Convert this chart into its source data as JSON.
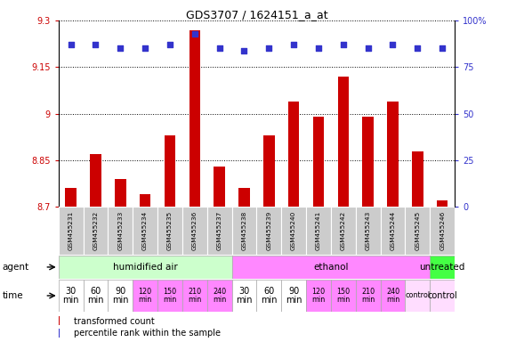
{
  "title": "GDS3707 / 1624151_a_at",
  "samples": [
    "GSM455231",
    "GSM455232",
    "GSM455233",
    "GSM455234",
    "GSM455235",
    "GSM455236",
    "GSM455237",
    "GSM455238",
    "GSM455239",
    "GSM455240",
    "GSM455241",
    "GSM455242",
    "GSM455243",
    "GSM455244",
    "GSM455245",
    "GSM455246"
  ],
  "transformed_count": [
    8.76,
    8.87,
    8.79,
    8.74,
    8.93,
    9.27,
    8.83,
    8.76,
    8.93,
    9.04,
    8.99,
    9.12,
    8.99,
    9.04,
    8.88,
    8.72
  ],
  "percentile_rank": [
    87,
    87,
    85,
    85,
    87,
    93,
    85,
    84,
    85,
    87,
    85,
    87,
    85,
    87,
    85,
    85
  ],
  "ylim": [
    8.7,
    9.3
  ],
  "yticks": [
    8.7,
    8.85,
    9.0,
    9.15,
    9.3
  ],
  "ytick_labels": [
    "8.7",
    "8.85",
    "9",
    "9.15",
    "9.3"
  ],
  "right_yticks": [
    0,
    25,
    50,
    75,
    100
  ],
  "right_ytick_labels": [
    "0",
    "25",
    "50",
    "75",
    "100%"
  ],
  "bar_color": "#cc0000",
  "dot_color": "#3333cc",
  "dot_size": 18,
  "bar_width": 0.45,
  "agent_groups": [
    {
      "label": "humidified air",
      "start": 0,
      "end": 7,
      "color": "#ccffcc"
    },
    {
      "label": "ethanol",
      "start": 7,
      "end": 15,
      "color": "#ff88ff"
    },
    {
      "label": "untreated",
      "start": 15,
      "end": 16,
      "color": "#44ff44"
    }
  ],
  "time_labels": [
    "30\nmin",
    "60\nmin",
    "90\nmin",
    "120\nmin",
    "150\nmin",
    "210\nmin",
    "240\nmin",
    "30\nmin",
    "60\nmin",
    "90\nmin",
    "120\nmin",
    "150\nmin",
    "210\nmin",
    "240\nmin",
    "control",
    ""
  ],
  "time_colors": [
    "#ffffff",
    "#ffffff",
    "#ffffff",
    "#ff88ff",
    "#ff88ff",
    "#ff88ff",
    "#ff88ff",
    "#ffffff",
    "#ffffff",
    "#ffffff",
    "#ff88ff",
    "#ff88ff",
    "#ff88ff",
    "#ff88ff",
    "#ffddff",
    "#ffddff"
  ],
  "sample_bg_color": "#cccccc",
  "sample_border_color": "#ffffff",
  "bg_color": "#ffffff",
  "grid_color": "#000000",
  "label_color_left": "#cc0000",
  "label_color_right": "#3333cc",
  "control_label": "control",
  "xlabel_agent": "agent",
  "xlabel_time": "time",
  "legend_bar_label": "transformed count",
  "legend_dot_label": "percentile rank within the sample"
}
